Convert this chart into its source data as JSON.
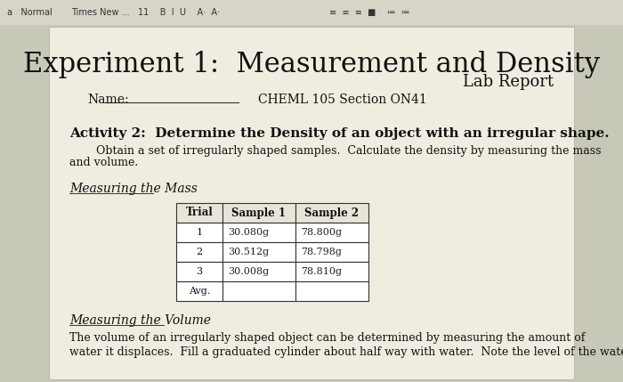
{
  "title": "Experiment 1:  Measurement and Density",
  "subtitle": "Lab Report",
  "name_label": "Name:",
  "course_info": "CHEML 105 Section ON41",
  "activity_title": "Activity 2:  Determine the Density of an object with an irregular shape.",
  "activity_desc1": "Obtain a set of irregularly shaped samples.  Calculate the density by measuring the mass",
  "activity_desc2": "and volume.",
  "section1_title": "Measuring the Mass",
  "table_headers": [
    "Trial",
    "Sample 1",
    "Sample 2"
  ],
  "table_rows": [
    [
      "1",
      "30.080g",
      "78.800g"
    ],
    [
      "2",
      "30.512g",
      "78.798g"
    ],
    [
      "3",
      "30.008g",
      "78.810g"
    ],
    [
      "Avg.",
      "",
      ""
    ]
  ],
  "section2_title": "Measuring the Volume",
  "section2_desc1": "The volume of an irregularly shaped object can be determined by measuring the amount of",
  "section2_desc2": "water it displaces.  Fill a graduated cylinder about half way with water.  Note the level of the water.",
  "bg_color": "#c8c8b8",
  "paper_color": "#f0ede0",
  "toolbar_color": "#d8d4c8",
  "table_border_color": "#333333",
  "title_font_size": 22,
  "subtitle_font_size": 13,
  "body_font_size": 9,
  "section_font_size": 10
}
